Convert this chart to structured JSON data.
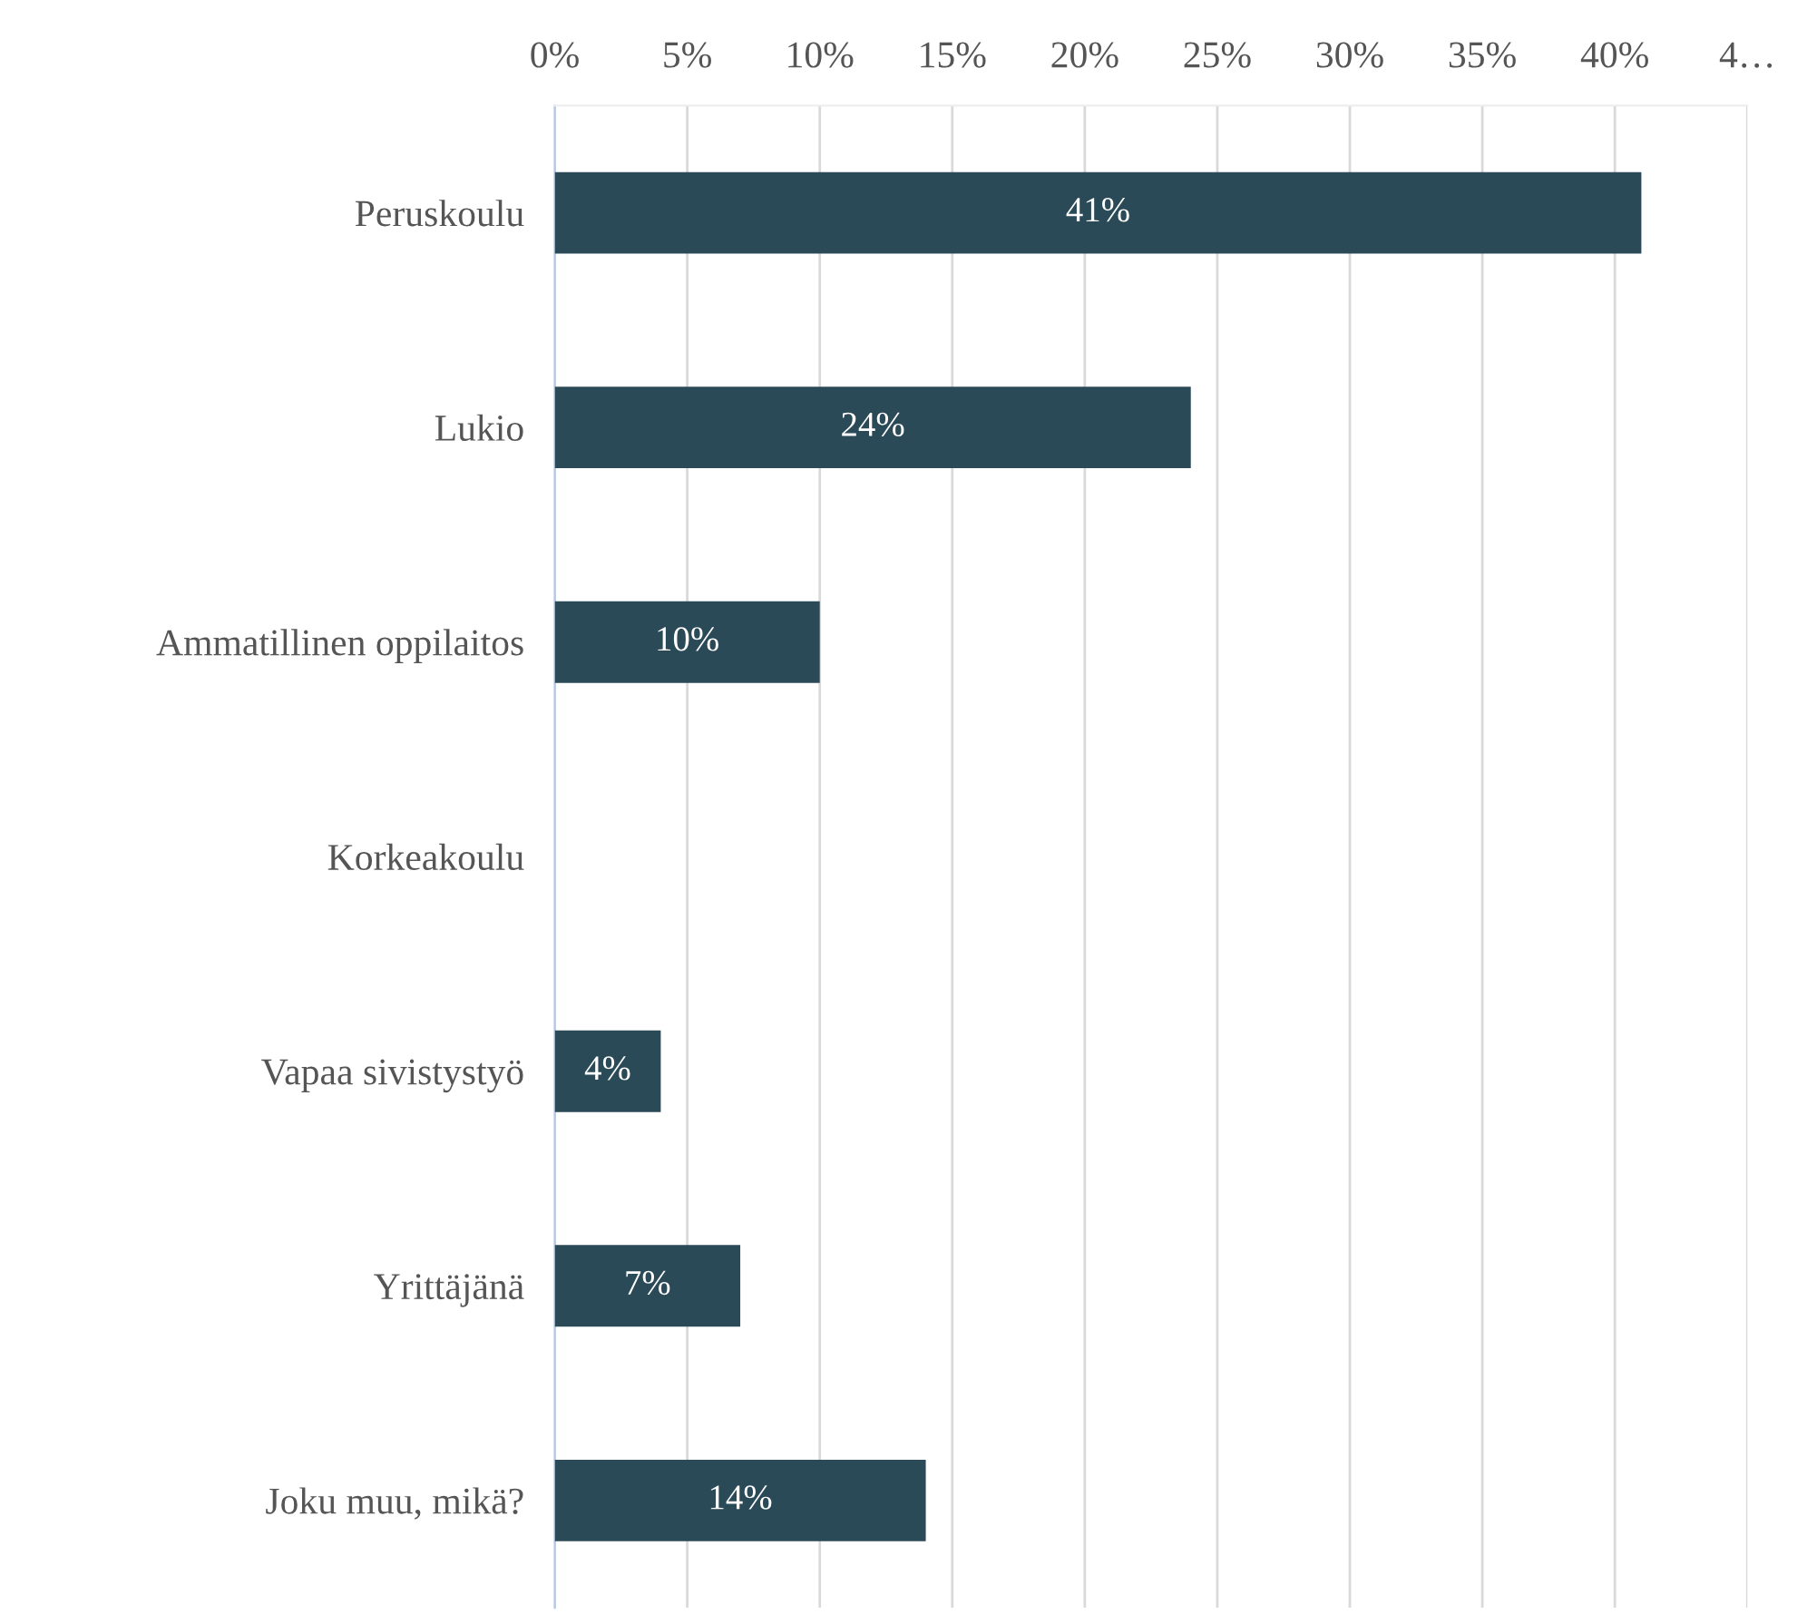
{
  "chart_data": {
    "type": "bar",
    "orientation": "horizontal",
    "categories": [
      "Peruskoulu",
      "Lukio",
      "Ammatillinen oppilaitos",
      "Korkeakoulu",
      "Vapaa sivistystyö",
      "Yrittäjänä",
      "Joku muu, mikä?"
    ],
    "values": [
      41,
      24,
      10,
      null,
      4,
      7,
      14
    ],
    "value_labels": [
      "41%",
      "24%",
      "10%",
      null,
      "4%",
      "7%",
      "14%"
    ],
    "color": "#2b4a58",
    "xlim": [
      0,
      45
    ],
    "xticks": [
      {
        "value": 0,
        "label": "0%"
      },
      {
        "value": 5,
        "label": "5%"
      },
      {
        "value": 10,
        "label": "10%"
      },
      {
        "value": 15,
        "label": "15%"
      },
      {
        "value": 20,
        "label": "20%"
      },
      {
        "value": 25,
        "label": "25%"
      },
      {
        "value": 30,
        "label": "30%"
      },
      {
        "value": 35,
        "label": "35%"
      },
      {
        "value": 40,
        "label": "40%"
      },
      {
        "value": 45,
        "label": "4…"
      }
    ],
    "grid": "x",
    "legend": false
  }
}
